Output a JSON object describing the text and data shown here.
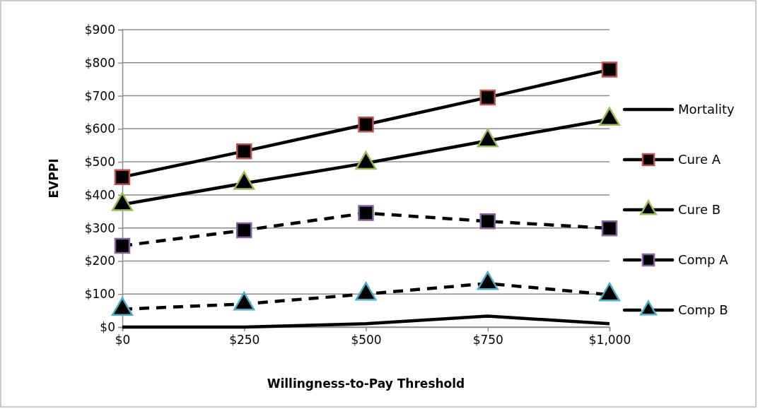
{
  "chart_data": {
    "type": "line",
    "xlabel": "Willingness-to-Pay Threshold",
    "ylabel": "EVPPI",
    "x": [
      0,
      250,
      500,
      750,
      1000
    ],
    "xlim": [
      0,
      1000
    ],
    "xticks": [
      {
        "value": 0,
        "label": "$0"
      },
      {
        "value": 250,
        "label": "$250"
      },
      {
        "value": 500,
        "label": "$500"
      },
      {
        "value": 750,
        "label": "$750"
      },
      {
        "value": 1000,
        "label": "$1,000"
      }
    ],
    "ylim": [
      0,
      900
    ],
    "yticks": [
      {
        "value": 0,
        "label": "$0"
      },
      {
        "value": 100,
        "label": "$100"
      },
      {
        "value": 200,
        "label": "$200"
      },
      {
        "value": 300,
        "label": "$300"
      },
      {
        "value": 400,
        "label": "$400"
      },
      {
        "value": 500,
        "label": "$500"
      },
      {
        "value": 600,
        "label": "$600"
      },
      {
        "value": 700,
        "label": "$700"
      },
      {
        "value": 800,
        "label": "$800"
      },
      {
        "value": 900,
        "label": "$900"
      }
    ],
    "grid": "y",
    "legend": "right",
    "series": [
      {
        "name": "Mortality",
        "color": "#000000",
        "marker": "none",
        "line_style": "solid",
        "values": [
          0,
          0,
          10,
          33,
          10
        ]
      },
      {
        "name": "Cure A",
        "color": "#c0504d",
        "marker": "square",
        "line_style": "solid",
        "values": [
          454,
          532,
          613,
          695,
          779
        ]
      },
      {
        "name": "Cure B",
        "color": "#9bbb59",
        "marker": "triangle",
        "line_style": "solid",
        "values": [
          371,
          435,
          496,
          564,
          629
        ]
      },
      {
        "name": "Comp A",
        "color": "#8064a2",
        "marker": "square",
        "line_style": "dashed",
        "values": [
          246,
          293,
          345,
          320,
          299
        ]
      },
      {
        "name": "Comp B",
        "color": "#4bacc6",
        "marker": "triangle",
        "line_style": "dashed",
        "values": [
          54,
          70,
          100,
          132,
          98
        ]
      }
    ]
  }
}
